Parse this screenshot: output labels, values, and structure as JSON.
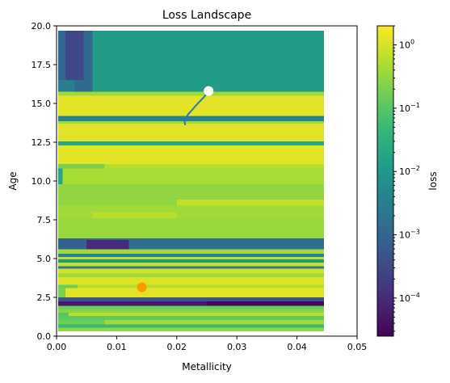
{
  "chart_data": {
    "type": "heatmap",
    "title": "Loss Landscape",
    "xlabel": "Metallicity",
    "ylabel": "Age",
    "xlim": [
      0.0,
      0.05
    ],
    "ylim": [
      0.0,
      20.0
    ],
    "x_ticks": [
      0.0,
      0.01,
      0.02,
      0.03,
      0.04,
      0.05
    ],
    "x_tick_labels": [
      "0.00",
      "0.01",
      "0.02",
      "0.03",
      "0.04",
      "0.05"
    ],
    "y_ticks": [
      0.0,
      2.5,
      5.0,
      7.5,
      10.0,
      12.5,
      15.0,
      17.5,
      20.0
    ],
    "y_tick_labels": [
      "0.0",
      "2.5",
      "5.0",
      "7.5",
      "10.0",
      "12.5",
      "15.0",
      "17.5",
      "20.0"
    ],
    "grid": false,
    "colormap": "viridis",
    "colorbar": {
      "label": "loss",
      "scale": "log",
      "range": [
        2.5e-05,
        2.0
      ],
      "ticks": [
        0.0001,
        0.001,
        0.01,
        0.1,
        1
      ],
      "tick_labels": [
        {
          "base": "10",
          "exp": "−4"
        },
        {
          "base": "10",
          "exp": "−3"
        },
        {
          "base": "10",
          "exp": "−2"
        },
        {
          "base": "10",
          "exp": "−1"
        },
        {
          "base": "10",
          "exp": "0"
        }
      ]
    },
    "heatmap_extent": {
      "x": [
        0.0003,
        0.0445
      ],
      "y": [
        0.3,
        19.7
      ]
    },
    "heatmap_bands": [
      {
        "y0": 0.3,
        "y1": 0.55,
        "loss": 0.3
      },
      {
        "y0": 0.55,
        "y1": 0.75,
        "loss": 0.05
      },
      {
        "y0": 0.75,
        "y1": 1.05,
        "loss": 0.4
      },
      {
        "y0": 1.05,
        "y1": 1.3,
        "loss": 0.12
      },
      {
        "y0": 1.3,
        "y1": 1.5,
        "loss": 0.6
      },
      {
        "y0": 1.5,
        "y1": 1.75,
        "loss": 0.25
      },
      {
        "y0": 1.75,
        "y1": 1.95,
        "loss": 0.15
      },
      {
        "y0": 1.95,
        "y1": 2.25,
        "loss": 5e-05
      },
      {
        "y0": 2.25,
        "y1": 2.5,
        "loss": 0.0005
      },
      {
        "y0": 2.5,
        "y1": 3.1,
        "loss": 1.2
      },
      {
        "y0": 3.1,
        "y1": 3.3,
        "loss": 0.6
      },
      {
        "y0": 3.3,
        "y1": 3.8,
        "loss": 1.1
      },
      {
        "y0": 3.8,
        "y1": 4.05,
        "loss": 0.4
      },
      {
        "y0": 4.05,
        "y1": 4.35,
        "loss": 1.0
      },
      {
        "y0": 4.35,
        "y1": 4.5,
        "loss": 0.003
      },
      {
        "y0": 4.5,
        "y1": 4.75,
        "loss": 0.8
      },
      {
        "y0": 4.75,
        "y1": 4.95,
        "loss": 0.01
      },
      {
        "y0": 4.95,
        "y1": 5.1,
        "loss": 0.6
      },
      {
        "y0": 5.1,
        "y1": 5.3,
        "loss": 0.004
      },
      {
        "y0": 5.3,
        "y1": 5.6,
        "loss": 0.4
      },
      {
        "y0": 5.6,
        "y1": 6.3,
        "loss": 0.0015
      },
      {
        "y0": 6.3,
        "y1": 7.6,
        "loss": 0.35
      },
      {
        "y0": 7.6,
        "y1": 8.4,
        "loss": 0.4
      },
      {
        "y0": 8.4,
        "y1": 9.8,
        "loss": 0.3
      },
      {
        "y0": 9.8,
        "y1": 10.8,
        "loss": 0.45
      },
      {
        "y0": 10.8,
        "y1": 11.1,
        "loss": 0.2
      },
      {
        "y0": 11.1,
        "y1": 12.3,
        "loss": 1.3
      },
      {
        "y0": 12.3,
        "y1": 12.55,
        "loss": 0.02
      },
      {
        "y0": 12.55,
        "y1": 13.7,
        "loss": 1.2
      },
      {
        "y0": 13.7,
        "y1": 13.85,
        "loss": 0.4
      },
      {
        "y0": 13.85,
        "y1": 14.2,
        "loss": 0.004
      },
      {
        "y0": 14.2,
        "y1": 15.5,
        "loss": 1.3
      },
      {
        "y0": 15.5,
        "y1": 15.75,
        "loss": 0.4
      },
      {
        "y0": 15.75,
        "y1": 19.7,
        "loss": 0.012
      }
    ],
    "heatmap_patches": [
      {
        "x0": 0.0003,
        "x1": 0.006,
        "y0": 5.6,
        "y1": 6.3,
        "loss": 0.0008
      },
      {
        "x0": 0.005,
        "x1": 0.012,
        "y0": 5.6,
        "y1": 6.2,
        "loss": 0.0001
      },
      {
        "x0": 0.025,
        "x1": 0.0445,
        "y0": 1.95,
        "y1": 2.25,
        "loss": 3e-05
      },
      {
        "x0": 0.0003,
        "x1": 0.006,
        "y0": 15.75,
        "y1": 19.7,
        "loss": 0.0012
      },
      {
        "x0": 0.0015,
        "x1": 0.0045,
        "y0": 16.5,
        "y1": 19.7,
        "loss": 0.0003
      },
      {
        "x0": 0.0003,
        "x1": 0.003,
        "y0": 15.75,
        "y1": 16.5,
        "loss": 0.003
      },
      {
        "x0": 0.0003,
        "x1": 0.001,
        "y0": 9.8,
        "y1": 10.8,
        "loss": 0.02
      },
      {
        "x0": 0.0003,
        "x1": 0.0015,
        "y0": 2.5,
        "y1": 3.1,
        "loss": 0.2
      },
      {
        "x0": 0.0003,
        "x1": 0.008,
        "y0": 0.75,
        "y1": 1.05,
        "loss": 0.15
      },
      {
        "x0": 0.0003,
        "x1": 0.002,
        "y0": 1.3,
        "y1": 1.5,
        "loss": 0.1
      },
      {
        "x0": 0.0003,
        "x1": 0.0035,
        "y0": 3.1,
        "y1": 3.3,
        "loss": 0.15
      },
      {
        "x0": 0.006,
        "x1": 0.02,
        "y0": 7.6,
        "y1": 8.0,
        "loss": 0.6
      },
      {
        "x0": 0.02,
        "x1": 0.0445,
        "y0": 8.4,
        "y1": 8.8,
        "loss": 0.7
      },
      {
        "x0": 0.008,
        "x1": 0.0445,
        "y0": 10.8,
        "y1": 11.1,
        "loss": 0.6
      }
    ],
    "trajectory": {
      "x": [
        0.0253,
        0.0245,
        0.0235,
        0.0226,
        0.0219,
        0.0215,
        0.0213,
        0.0214
      ],
      "y": [
        15.8,
        15.4,
        15.0,
        14.6,
        14.3,
        14.05,
        13.85,
        13.6
      ]
    },
    "markers": [
      {
        "x": 0.0253,
        "y": 15.8,
        "color": "#ffffff"
      },
      {
        "x": 0.0142,
        "y": 3.15,
        "color": "#ff9900"
      }
    ],
    "trajectory_color": "#2a78b5"
  }
}
